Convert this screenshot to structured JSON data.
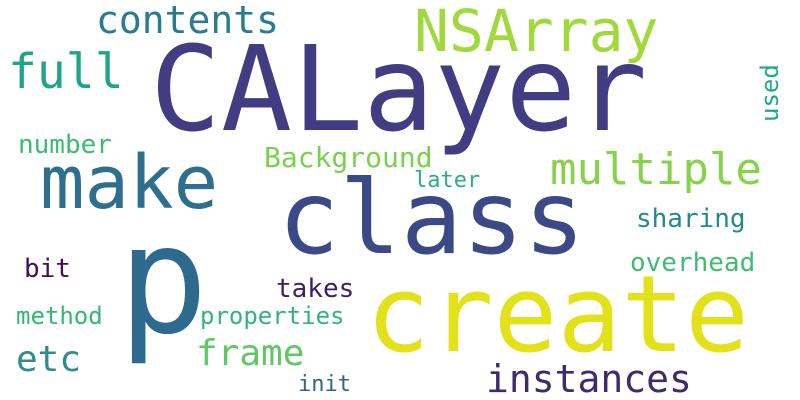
{
  "word_cloud": {
    "background": "#ffffff",
    "words": [
      {
        "id": "calayer",
        "text": "CALayer",
        "color": "#423c82"
      },
      {
        "id": "create",
        "text": "create",
        "color": "#e3e11a"
      },
      {
        "id": "class",
        "text": "class",
        "color": "#3b4a86"
      },
      {
        "id": "p",
        "text": "p",
        "color": "#2d6a8e"
      },
      {
        "id": "make",
        "text": "make",
        "color": "#2f6f8e"
      },
      {
        "id": "nsarray",
        "text": "NSArray",
        "color": "#9fd93b"
      },
      {
        "id": "contents",
        "text": "contents",
        "color": "#2a7b8e"
      },
      {
        "id": "full",
        "text": "full",
        "color": "#20a386"
      },
      {
        "id": "multiple",
        "text": "multiple",
        "color": "#87d24b"
      },
      {
        "id": "instances",
        "text": "instances",
        "color": "#3d2b6e"
      },
      {
        "id": "frame",
        "text": "frame",
        "color": "#5ec962"
      },
      {
        "id": "etc",
        "text": "etc",
        "color": "#2e8c8b"
      },
      {
        "id": "background",
        "text": "Background",
        "color": "#7ad151"
      },
      {
        "id": "number",
        "text": "number",
        "color": "#3dbb74"
      },
      {
        "id": "sharing",
        "text": "sharing",
        "color": "#23898e"
      },
      {
        "id": "overhead",
        "text": "overhead",
        "color": "#3fbc73"
      },
      {
        "id": "takes",
        "text": "takes",
        "color": "#3b1e6a"
      },
      {
        "id": "bit",
        "text": "bit",
        "color": "#450d54"
      },
      {
        "id": "properties",
        "text": "properties",
        "color": "#31b57b"
      },
      {
        "id": "method",
        "text": "method",
        "color": "#35b779"
      },
      {
        "id": "later",
        "text": "later",
        "color": "#29af7f"
      },
      {
        "id": "init",
        "text": "init",
        "color": "#33638d"
      },
      {
        "id": "used",
        "text": "used",
        "color": "#22a884"
      }
    ]
  }
}
